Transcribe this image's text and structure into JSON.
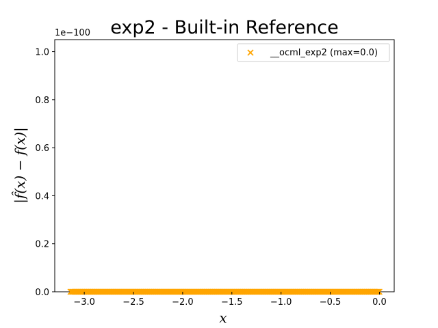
{
  "chart_data": {
    "type": "scatter",
    "title": "exp2 - Built-in Reference",
    "xlabel": "x",
    "ylabel": "|f̂(x) − f(x)|",
    "y_offset_label": "1e−100",
    "xlim": [
      -3.3,
      0.15
    ],
    "ylim": [
      0,
      1.05
    ],
    "x_ticks": [
      -3.0,
      -2.5,
      -2.0,
      -1.5,
      -1.0,
      -0.5,
      0.0
    ],
    "x_tick_labels": [
      "−3.0",
      "−2.5",
      "−2.0",
      "−1.5",
      "−1.0",
      "−0.5",
      "0.0"
    ],
    "y_ticks": [
      0.0,
      0.2,
      0.4,
      0.6,
      0.8,
      1.0
    ],
    "y_tick_labels": [
      "0.0",
      "0.2",
      "0.4",
      "0.6",
      "0.8",
      "1.0"
    ],
    "grid": false,
    "legend_position": "top-right",
    "series": [
      {
        "name": "__ocml_exp2 (max=0.0)",
        "color": "#FFA500",
        "marker": "x",
        "x_range": [
          -3.14,
          0.0
        ],
        "y_value": 0.0
      }
    ]
  }
}
